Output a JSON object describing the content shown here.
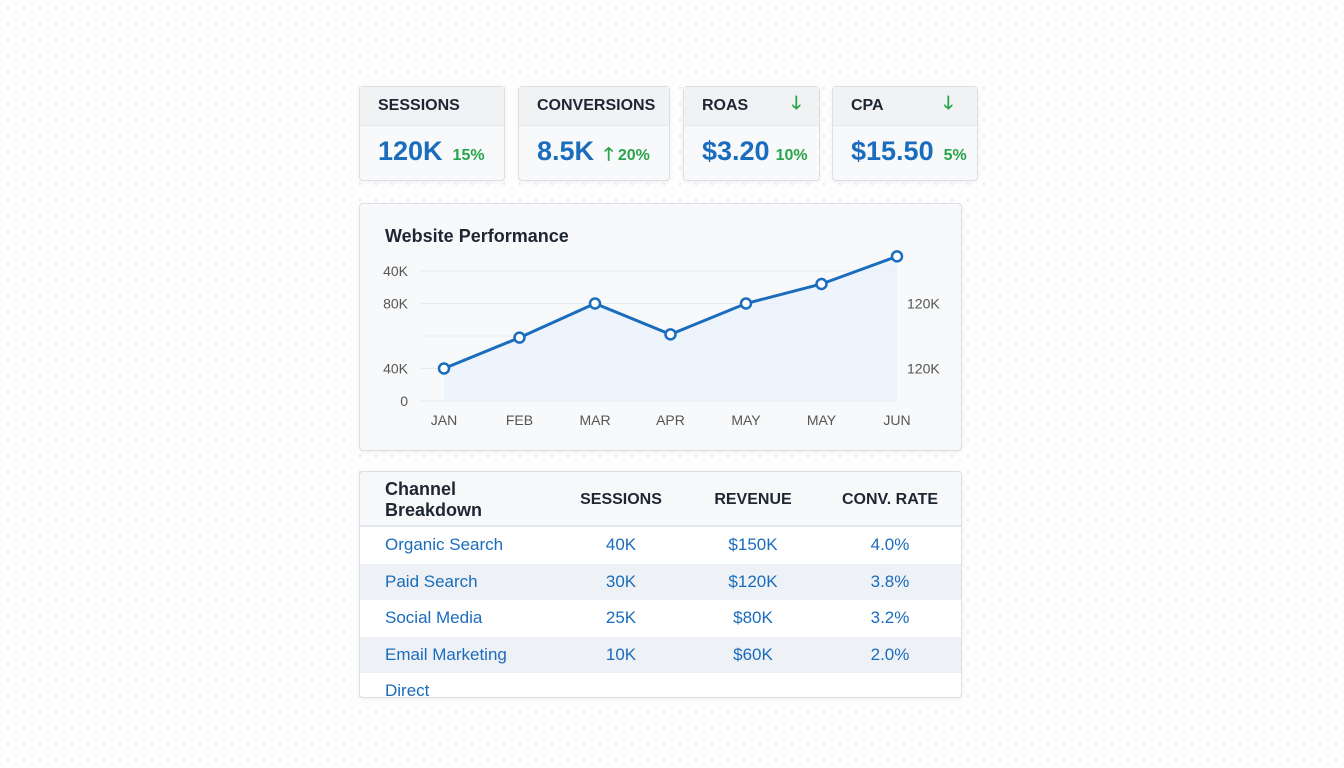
{
  "kpis": [
    {
      "label": "SESSIONS",
      "value": "120K",
      "change": "15%",
      "icon": "",
      "arrow_pos": "none"
    },
    {
      "label": "CONVERSIONS",
      "value": "8.5K",
      "change": "20%",
      "icon": "arrow-up-icon",
      "arrow_pos": "inline"
    },
    {
      "label": "ROAS",
      "value": "$3.20",
      "change": "10%",
      "icon": "arrow-down-icon",
      "arrow_pos": "header"
    },
    {
      "label": "CPA",
      "value": "$15.50",
      "change": "5%",
      "icon": "arrow-down-icon",
      "arrow_pos": "header"
    }
  ],
  "colors": {
    "accent": "#1a6cbc",
    "positive": "#28a44a"
  },
  "chart_data": {
    "type": "line",
    "title": "Website Performance",
    "categories": [
      "JAN",
      "FEB",
      "MAR",
      "APR",
      "MAY",
      "MAY",
      "JUN"
    ],
    "values": [
      40,
      78,
      120,
      82,
      120,
      144,
      178
    ],
    "ylim": [
      0,
      160
    ],
    "left_tick_labels": [
      "0",
      "40K",
      "",
      "80K",
      "40K"
    ],
    "right_tick_labels": [
      "",
      "120K",
      "",
      "120K",
      ""
    ],
    "grid": true
  },
  "table": {
    "title": "Channel Breakdown",
    "headers": [
      "SESSIONS",
      "REVENUE",
      "CONV. RATE"
    ],
    "rows": [
      [
        "Organic Search",
        "40K",
        "$150K",
        "4.0%"
      ],
      [
        "Paid Search",
        "30K",
        "$120K",
        "3.8%"
      ],
      [
        "Social Media",
        "25K",
        "$80K",
        "3.2%"
      ],
      [
        "Email Marketing",
        "10K",
        "$60K",
        "2.0%"
      ],
      [
        "Direct",
        "",
        "",
        ""
      ]
    ]
  }
}
